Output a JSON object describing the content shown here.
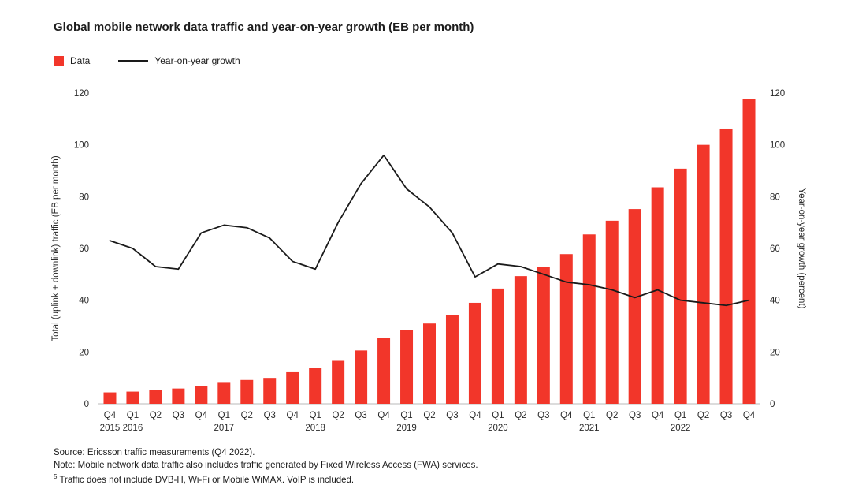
{
  "page_title": "Global mobile network data traffic and year-on-year growth (EB per month)",
  "legend": {
    "data_label": "Data",
    "growth_label": "Year-on-year growth"
  },
  "colors": {
    "bar": "#f2362a",
    "line": "#1a1a1a"
  },
  "chart_data": {
    "type": "bar",
    "title": "Global mobile network data traffic and year-on-year growth (EB per month)",
    "categories": [
      "Q4",
      "Q1",
      "Q2",
      "Q3",
      "Q4",
      "Q1",
      "Q2",
      "Q3",
      "Q4",
      "Q1",
      "Q2",
      "Q3",
      "Q4",
      "Q1",
      "Q2",
      "Q3",
      "Q4",
      "Q1",
      "Q2",
      "Q3",
      "Q4",
      "Q1",
      "Q2",
      "Q3",
      "Q4",
      "Q1",
      "Q2",
      "Q3",
      "Q4"
    ],
    "year_labels": [
      {
        "label": "2015",
        "index": 0
      },
      {
        "label": "2016",
        "index": 1
      },
      {
        "label": "2017",
        "index": 5
      },
      {
        "label": "2018",
        "index": 9
      },
      {
        "label": "2019",
        "index": 13
      },
      {
        "label": "2020",
        "index": 17
      },
      {
        "label": "2021",
        "index": 21
      },
      {
        "label": "2022",
        "index": 25
      }
    ],
    "series": [
      {
        "name": "Data",
        "kind": "bar",
        "axis": "left",
        "values": [
          4.4,
          4.7,
          5.2,
          5.9,
          7.0,
          8.1,
          9.2,
          10.0,
          12.2,
          13.8,
          16.6,
          20.6,
          25.5,
          28.5,
          31.0,
          34.3,
          39.0,
          44.5,
          49.3,
          52.8,
          57.8,
          65.4,
          70.7,
          75.2,
          83.6,
          90.8,
          100.0,
          106.3,
          117.6
        ]
      },
      {
        "name": "Year-on-year growth",
        "kind": "line",
        "axis": "right",
        "values": [
          63,
          60,
          53,
          52,
          66,
          69,
          68,
          64,
          55,
          52,
          70,
          85,
          96,
          83,
          76,
          66,
          49,
          54,
          53,
          50,
          47,
          46,
          44,
          41,
          44,
          40,
          39,
          38,
          40
        ]
      }
    ],
    "ylabel_left": "Total (uplink + downlink) traffic (EB per month)",
    "ylabel_right": "Year-on-year growth (percent)",
    "ylim": [
      0,
      120
    ],
    "ytick_step": 20,
    "grid": false,
    "legend_position": "top-left"
  },
  "footer": {
    "line1": "Source: Ericsson traffic measurements (Q4 2022).",
    "line2": "Note: Mobile network data traffic also includes traffic generated by Fixed Wireless Access (FWA) services.",
    "line3_marker": "5",
    "line3": " Traffic does not include DVB-H, Wi-Fi or Mobile WiMAX. VoIP is included."
  }
}
